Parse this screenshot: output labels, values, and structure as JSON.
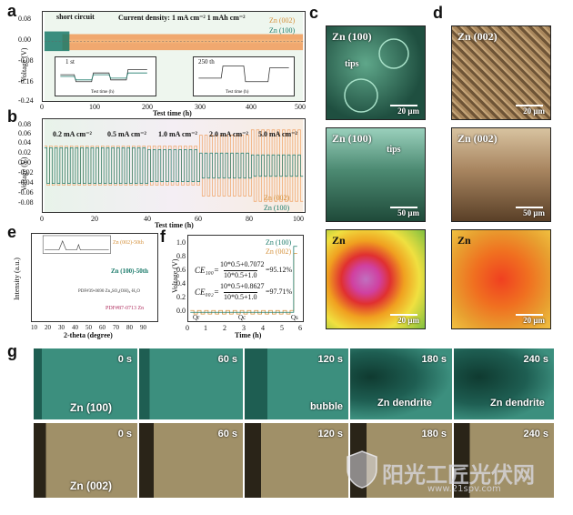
{
  "panels": {
    "a": "a",
    "b": "b",
    "c": "c",
    "d": "d",
    "e": "e",
    "f": "f",
    "g": "g"
  },
  "panel_a": {
    "annotation_short_circuit": "short circuit",
    "annotation_conditions": "Current density: 1 mA cm⁻²   1 mAh cm⁻²",
    "legend": [
      "Zn (002)",
      "Zn (100)"
    ],
    "ylabel": "Voltage (V)",
    "xlabel": "Test time (h)",
    "yticks": [
      "0.08",
      "0.00",
      "-0.08",
      "-0.16",
      "-0.24"
    ],
    "xticks": [
      "0",
      "100",
      "200",
      "300",
      "400",
      "500"
    ],
    "inset1_title": "1 st",
    "inset2_title": "250 th",
    "inset1_xlabel": "Test time (h)",
    "inset2_xlabel": "Test time (h)",
    "inset1_ylabel": "Voltage (V)",
    "inset1_xticks": [
      "-0.5",
      "0.5",
      "1.0",
      "1.5",
      "2.0",
      "2.5"
    ],
    "inset2_xticks": [
      "498.0",
      "498.5",
      "499.0",
      "499.5",
      "500.0"
    ]
  },
  "panel_b": {
    "ylabel": "Voltage (V)",
    "xlabel": "Test time (h)",
    "yticks": [
      "0.08",
      "0.06",
      "0.04",
      "0.02",
      "0.00",
      "-0.02",
      "-0.04",
      "-0.06",
      "-0.08"
    ],
    "xticks": [
      "0",
      "20",
      "40",
      "60",
      "80",
      "100"
    ],
    "rates": [
      "0.2 mA cm⁻²",
      "0.5 mA cm⁻²",
      "1.0 mA cm⁻²",
      "2.0 mA cm⁻²",
      "5.0 mA cm⁻²"
    ],
    "legend": [
      "Zn (002)",
      "Zn (100)"
    ]
  },
  "panel_c": {
    "top_label": "Zn (100)",
    "top_tips": "tips",
    "top_scale": "20 μm",
    "mid_label": "Zn (100)",
    "mid_tips": "tips",
    "mid_scale": "50 μm",
    "bot_label": "Zn",
    "bot_scale": "20 μm"
  },
  "panel_d": {
    "top_label": "Zn (002)",
    "top_scale": "20 μm",
    "mid_label": "Zn (002)",
    "mid_scale": "50 μm",
    "bot_label": "Zn",
    "bot_scale": "20 μm"
  },
  "panel_e": {
    "ylabel": "Intensity (a.u.)",
    "xlabel": "2-theta (degree)",
    "xticks": [
      "10",
      "20",
      "30",
      "40",
      "50",
      "60",
      "70",
      "80",
      "90"
    ],
    "traces": [
      "Zn (002)-50th",
      "Zn (100)-50th",
      "PDF#39-0690 Zn₄SO₄(OH)₆·H₂O",
      "PDF#87-0713 Zn"
    ]
  },
  "panel_f": {
    "ylabel": "Voltage (V)",
    "xlabel": "Time (h)",
    "yticks": [
      "1.0",
      "0.8",
      "0.6",
      "0.4",
      "0.2",
      "0.0"
    ],
    "xticks": [
      "0",
      "1",
      "2",
      "3",
      "4",
      "5",
      "6"
    ],
    "legend": [
      "Zn (100)",
      "Zn (002)"
    ],
    "eq1_lhs": "CE₁₀₀=",
    "eq1_num": "10*0.5+0.7072",
    "eq1_den": "10*0.5+1.0",
    "eq1_res": "=95.12%",
    "eq2_lhs": "CE₀₀₂=",
    "eq2_num": "10*0.5+0.8627",
    "eq2_den": "10*0.5+1.0",
    "eq2_res": "=97.71%",
    "q_labels": [
      "Qr",
      "Qc",
      "Qs"
    ]
  },
  "panel_g": {
    "row1": {
      "sample": "Zn (100)",
      "times": [
        "0 s",
        "60 s",
        "120 s",
        "180 s",
        "240 s"
      ],
      "bubble": "bubble",
      "dendrite1": "Zn dendrite",
      "dendrite2": "Zn dendrite"
    },
    "row2": {
      "sample": "Zn (002)",
      "times": [
        "0 s",
        "60 s",
        "120 s",
        "180 s",
        "240 s"
      ]
    }
  },
  "watermark": {
    "text": "阳光工匠光伏网",
    "url": "www.21spv.com"
  },
  "colors": {
    "orange": "#f0a060",
    "teal": "#1a7a6a",
    "green_sem": "#2f6b58",
    "brown_sem": "#8a6a45"
  }
}
